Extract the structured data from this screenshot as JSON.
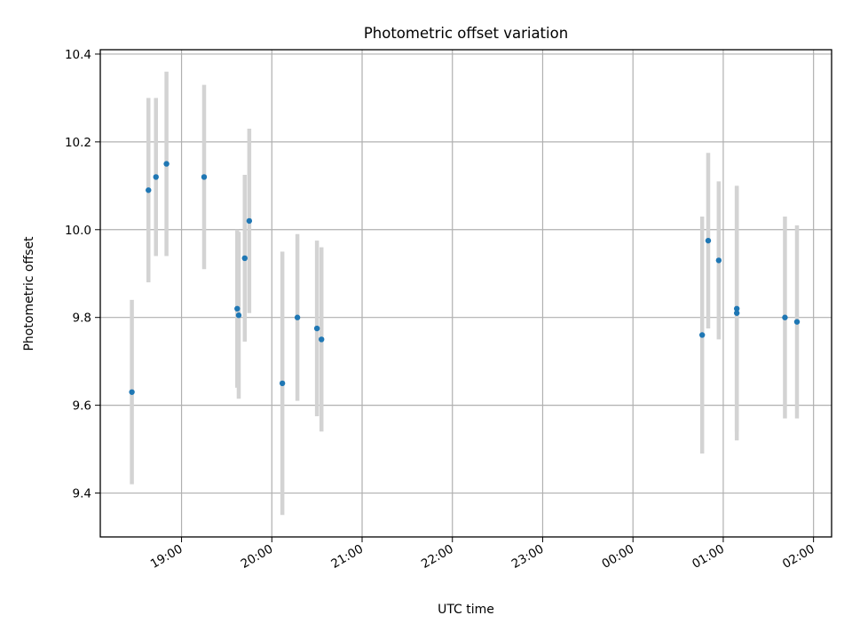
{
  "chart_data": {
    "type": "scatter",
    "title": "Photometric offset variation",
    "xlabel": "UTC time",
    "ylabel": "Photometric offset",
    "grid": true,
    "xlim": [
      "18:06",
      "02:12"
    ],
    "ylim": [
      9.3,
      10.41
    ],
    "x_ticks": [
      "19:00",
      "20:00",
      "21:00",
      "22:00",
      "23:00",
      "00:00",
      "01:00",
      "02:00"
    ],
    "y_ticks": [
      "9.4",
      "9.6",
      "9.8",
      "10.0",
      "10.2",
      "10.4"
    ],
    "colors": {
      "points": "#1f77b4",
      "errorbars": "#d3d3d3",
      "grid": "#b0b0b0"
    },
    "series": [
      {
        "points": [
          {
            "x": "18:27",
            "y": 9.63,
            "err": 0.21
          },
          {
            "x": "18:38",
            "y": 10.09,
            "err": 0.21
          },
          {
            "x": "18:43",
            "y": 10.12,
            "err": 0.18
          },
          {
            "x": "18:50",
            "y": 10.15,
            "err": 0.21
          },
          {
            "x": "19:15",
            "y": 10.12,
            "err": 0.21
          },
          {
            "x": "19:37",
            "y": 9.82,
            "err": 0.18
          },
          {
            "x": "19:38",
            "y": 9.805,
            "err": 0.19
          },
          {
            "x": "19:42",
            "y": 9.935,
            "err": 0.19
          },
          {
            "x": "19:45",
            "y": 10.02,
            "err": 0.21
          },
          {
            "x": "20:07",
            "y": 9.65,
            "err": 0.3
          },
          {
            "x": "20:17",
            "y": 9.8,
            "err": 0.19
          },
          {
            "x": "20:30",
            "y": 9.775,
            "err": 0.2
          },
          {
            "x": "20:33",
            "y": 9.75,
            "err": 0.21
          },
          {
            "x": "00:46",
            "y": 9.76,
            "err": 0.27
          },
          {
            "x": "00:50",
            "y": 9.975,
            "err": 0.2
          },
          {
            "x": "00:57",
            "y": 9.93,
            "err": 0.18
          },
          {
            "x": "01:09",
            "y": 9.82,
            "err": 0.28
          },
          {
            "x": "01:09",
            "y": 9.81,
            "err": 0.29
          },
          {
            "x": "01:41",
            "y": 9.8,
            "err": 0.23
          },
          {
            "x": "01:49",
            "y": 9.79,
            "err": 0.22
          }
        ]
      }
    ]
  }
}
